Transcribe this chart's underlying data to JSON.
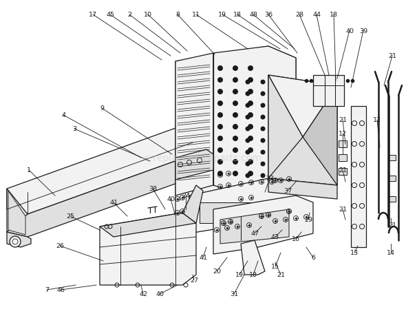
{
  "background_color": "#ffffff",
  "watermark": "e-replacementparts.com",
  "watermark_color": "#c8c8c8",
  "lc": "#1a1a1a",
  "lw": 0.9,
  "fig_w": 5.9,
  "fig_h": 4.6,
  "dpi": 100
}
